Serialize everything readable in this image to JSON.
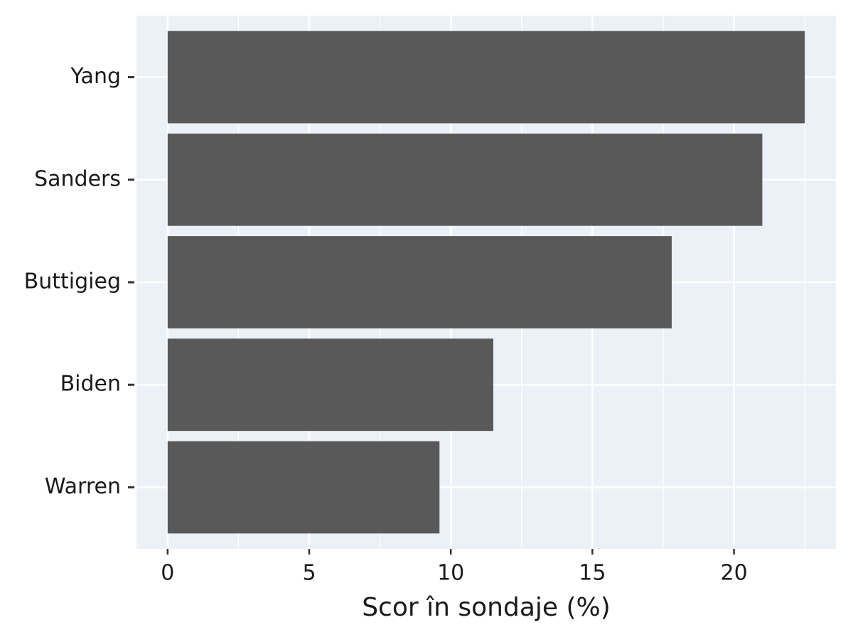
{
  "chart_data": {
    "type": "bar",
    "orientation": "horizontal",
    "x_label": "Scor în sondaje (%)",
    "categories": [
      "Yang",
      "Sanders",
      "Buttigieg",
      "Biden",
      "Warren"
    ],
    "values": [
      22.5,
      21,
      17.8,
      11.5,
      9.6
    ],
    "color": "#595959",
    "background": "#ebf1f6",
    "xlim": [
      -1.1,
      23.6
    ],
    "xticks": [
      0,
      5,
      10,
      15,
      20
    ],
    "minor_xticks": [
      2.5,
      7.5,
      12.5,
      17.5,
      22.5
    ],
    "grid": true
  }
}
